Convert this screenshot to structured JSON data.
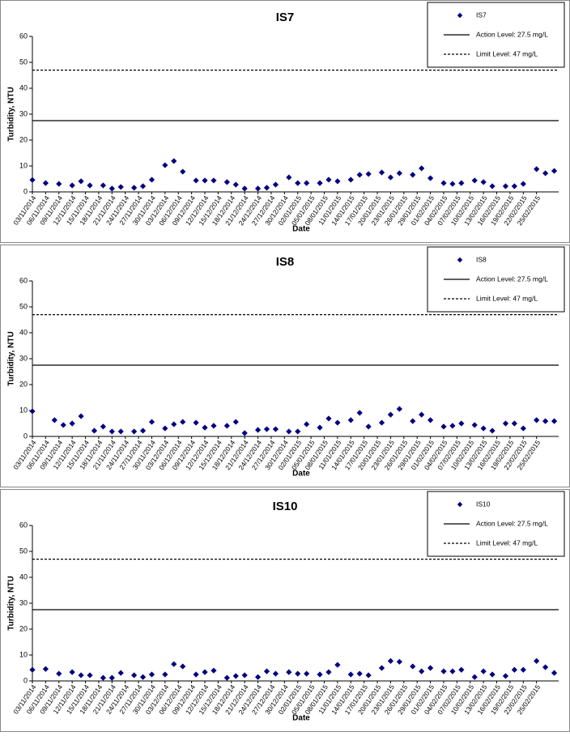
{
  "chart_data": [
    {
      "type": "scatter",
      "title": "IS7",
      "x_label": "Date",
      "y_label": "Turbidity, NTU",
      "legend": "upper right",
      "series": [
        {
          "name": "IS7",
          "color": "#000080",
          "x": [
            "03/11/2014",
            "06/11/2014",
            "09/11/2014",
            "12/11/2014",
            "14/11/2014",
            "16/11/2014",
            "19/11/2014",
            "21/11/2014",
            "23/11/2014",
            "26/11/2014",
            "28/11/2014",
            "30/11/2014",
            "03/12/2014",
            "05/12/2014",
            "07/12/2014",
            "10/12/2014",
            "12/12/2014",
            "14/12/2014",
            "17/12/2014",
            "19/12/2014",
            "21/12/2014",
            "24/12/2014",
            "26/12/2014",
            "28/12/2014",
            "31/12/2014",
            "02/01/2015",
            "04/01/2015",
            "07/01/2015",
            "09/01/2015",
            "11/01/2015",
            "14/01/2015",
            "16/01/2015",
            "18/01/2015",
            "21/01/2015",
            "23/01/2015",
            "25/01/2015",
            "28/01/2015",
            "30/01/2015",
            "01/02/2015",
            "04/02/2015",
            "06/02/2015",
            "08/02/2015",
            "11/02/2015",
            "13/02/2015",
            "15/02/2015",
            "18/02/2015",
            "20/02/2015",
            "22/02/2015",
            "25/02/2015",
            "27/02/2015",
            "01/03/2015"
          ],
          "values": [
            4.6,
            3.4,
            3.1,
            2.5,
            4.1,
            2.5,
            2.5,
            1.3,
            1.9,
            1.6,
            2.2,
            4.7,
            10.3,
            11.9,
            7.8,
            4.4,
            4.4,
            4.4,
            3.8,
            2.8,
            1.3,
            1.3,
            1.6,
            2.8,
            5.6,
            3.4,
            3.4,
            3.4,
            4.7,
            4.1,
            4.7,
            6.6,
            6.9,
            7.5,
            5.6,
            7.2,
            6.6,
            9.1,
            5.3,
            3.4,
            3.1,
            3.4,
            4.4,
            3.8,
            2.2,
            2.2,
            2.2,
            3.1,
            8.8,
            7.2,
            8.1
          ]
        }
      ],
      "reference_lines": [
        {
          "name": "Action Level: 27.5 mg/L",
          "value": 27.5,
          "style": "solid"
        },
        {
          "name": "Limit Level: 47 mg/L",
          "value": 47,
          "style": "dashed"
        }
      ],
      "xlim": [
        "03/11/2014",
        "02/03/2015"
      ],
      "xticks": [
        "03/11/2014",
        "06/11/2014",
        "09/11/2014",
        "12/11/2014",
        "15/11/2014",
        "18/11/2014",
        "21/11/2014",
        "24/11/2014",
        "27/11/2014",
        "30/11/2014",
        "03/12/2014",
        "06/12/2014",
        "09/12/2014",
        "12/12/2014",
        "15/12/2014",
        "18/12/2014",
        "21/12/2014",
        "24/12/2014",
        "27/12/2014",
        "30/12/2014",
        "02/01/2015",
        "05/01/2015",
        "08/01/2015",
        "11/01/2015",
        "14/01/2015",
        "17/01/2015",
        "20/01/2015",
        "23/01/2015",
        "26/01/2015",
        "29/01/2015",
        "01/02/2015",
        "04/02/2015",
        "07/02/2015",
        "10/02/2015",
        "13/02/2015",
        "16/02/2015",
        "19/02/2015",
        "22/02/2015",
        "25/02/2015"
      ],
      "ylim": [
        0,
        60
      ],
      "yticks": [
        0,
        10,
        20,
        30,
        40,
        50,
        60
      ]
    },
    {
      "type": "scatter",
      "title": "IS8",
      "x_label": "Date",
      "y_label": "Turbidity, NTU",
      "legend": "upper right",
      "series": [
        {
          "name": "IS8",
          "color": "#000080",
          "x": [
            "03/11/2014",
            "08/11/2014",
            "10/11/2014",
            "12/11/2014",
            "14/11/2014",
            "17/11/2014",
            "19/11/2014",
            "21/11/2014",
            "23/11/2014",
            "26/11/2014",
            "28/11/2014",
            "30/11/2014",
            "03/12/2014",
            "05/12/2014",
            "07/12/2014",
            "10/12/2014",
            "12/12/2014",
            "14/12/2014",
            "17/12/2014",
            "19/12/2014",
            "21/12/2014",
            "24/12/2014",
            "26/12/2014",
            "28/12/2014",
            "31/12/2014",
            "02/01/2015",
            "04/01/2015",
            "07/01/2015",
            "09/01/2015",
            "11/01/2015",
            "14/01/2015",
            "16/01/2015",
            "18/01/2015",
            "21/01/2015",
            "23/01/2015",
            "25/01/2015",
            "28/01/2015",
            "30/01/2015",
            "01/02/2015",
            "04/02/2015",
            "06/02/2015",
            "08/02/2015",
            "11/02/2015",
            "13/02/2015",
            "15/02/2015",
            "18/02/2015",
            "20/02/2015",
            "22/02/2015",
            "25/02/2015",
            "27/02/2015",
            "01/03/2015"
          ],
          "values": [
            9.7,
            6.3,
            4.4,
            5.0,
            7.8,
            2.2,
            3.8,
            1.9,
            1.9,
            1.9,
            2.2,
            5.6,
            3.1,
            4.7,
            5.6,
            5.3,
            3.4,
            4.1,
            4.1,
            5.6,
            1.3,
            2.5,
            2.8,
            2.8,
            1.9,
            1.9,
            4.7,
            3.4,
            6.9,
            5.3,
            6.3,
            9.1,
            3.8,
            5.3,
            8.4,
            10.6,
            5.9,
            8.4,
            6.3,
            3.8,
            4.1,
            5.0,
            4.4,
            3.1,
            2.2,
            5.0,
            5.0,
            3.1,
            6.3,
            5.9,
            5.9
          ]
        }
      ],
      "reference_lines": [
        {
          "name": "Action Level: 27.5 mg/L",
          "value": 27.5,
          "style": "solid"
        },
        {
          "name": "Limit Level: 47 mg/L",
          "value": 47,
          "style": "dashed"
        }
      ],
      "xlim": [
        "03/11/2014",
        "02/03/2015"
      ],
      "xticks": [
        "03/11/2014",
        "06/11/2014",
        "09/11/2014",
        "12/11/2014",
        "15/11/2014",
        "18/11/2014",
        "21/11/2014",
        "24/11/2014",
        "27/11/2014",
        "30/11/2014",
        "03/12/2014",
        "06/12/2014",
        "09/12/2014",
        "12/12/2014",
        "15/12/2014",
        "18/12/2014",
        "21/12/2014",
        "24/12/2014",
        "27/12/2014",
        "30/12/2014",
        "02/01/2015",
        "05/01/2015",
        "08/01/2015",
        "11/01/2015",
        "14/01/2015",
        "17/01/2015",
        "20/01/2015",
        "23/01/2015",
        "26/01/2015",
        "29/01/2015",
        "01/02/2015",
        "04/02/2015",
        "07/02/2015",
        "10/02/2015",
        "13/02/2015",
        "16/02/2015",
        "19/02/2015",
        "22/02/2015",
        "25/02/2015"
      ],
      "ylim": [
        0,
        60
      ],
      "yticks": [
        0,
        10,
        20,
        30,
        40,
        50,
        60
      ]
    },
    {
      "type": "scatter",
      "title": "IS10",
      "x_label": "Date",
      "y_label": "Turbidity, NTU",
      "legend": "upper right",
      "series": [
        {
          "name": "IS10",
          "color": "#000080",
          "x": [
            "03/11/2014",
            "06/11/2014",
            "09/11/2014",
            "12/11/2014",
            "14/11/2014",
            "16/11/2014",
            "19/11/2014",
            "21/11/2014",
            "23/11/2014",
            "26/11/2014",
            "28/11/2014",
            "30/11/2014",
            "03/12/2014",
            "05/12/2014",
            "07/12/2014",
            "10/12/2014",
            "12/12/2014",
            "14/12/2014",
            "17/12/2014",
            "19/12/2014",
            "21/12/2014",
            "24/12/2014",
            "26/12/2014",
            "28/12/2014",
            "31/12/2014",
            "02/01/2015",
            "04/01/2015",
            "07/01/2015",
            "09/01/2015",
            "11/01/2015",
            "14/01/2015",
            "16/01/2015",
            "18/01/2015",
            "21/01/2015",
            "23/01/2015",
            "25/01/2015",
            "28/01/2015",
            "30/01/2015",
            "01/02/2015",
            "04/02/2015",
            "06/02/2015",
            "08/02/2015",
            "11/02/2015",
            "13/02/2015",
            "15/02/2015",
            "18/02/2015",
            "20/02/2015",
            "22/02/2015",
            "25/02/2015",
            "27/02/2015",
            "01/03/2015"
          ],
          "values": [
            4.3,
            4.6,
            2.8,
            3.4,
            2.2,
            2.2,
            1.2,
            1.2,
            3.1,
            2.2,
            1.5,
            2.5,
            2.5,
            6.5,
            5.6,
            2.5,
            3.4,
            4.0,
            1.2,
            1.9,
            2.2,
            1.5,
            3.7,
            2.8,
            3.4,
            2.8,
            2.8,
            2.5,
            3.4,
            6.2,
            2.5,
            2.8,
            2.2,
            5.0,
            7.7,
            7.4,
            5.6,
            3.7,
            5.0,
            3.7,
            3.7,
            4.3,
            1.5,
            3.7,
            2.5,
            1.9,
            4.3,
            4.3,
            7.7,
            5.3,
            3.1
          ]
        }
      ],
      "reference_lines": [
        {
          "name": "Action Level: 27.5 mg/L",
          "value": 27.5,
          "style": "solid"
        },
        {
          "name": "Limit Level: 47 mg/L",
          "value": 47,
          "style": "dashed"
        }
      ],
      "xlim": [
        "03/11/2014",
        "02/03/2015"
      ],
      "xticks": [
        "03/11/2014",
        "06/11/2014",
        "09/11/2014",
        "12/11/2014",
        "15/11/2014",
        "18/11/2014",
        "21/11/2014",
        "24/11/2014",
        "27/11/2014",
        "30/11/2014",
        "03/12/2014",
        "06/12/2014",
        "09/12/2014",
        "12/12/2014",
        "15/12/2014",
        "18/12/2014",
        "21/12/2014",
        "24/12/2014",
        "27/12/2014",
        "30/12/2014",
        "02/01/2015",
        "05/01/2015",
        "08/01/2015",
        "11/01/2015",
        "14/01/2015",
        "17/01/2015",
        "20/01/2015",
        "23/01/2015",
        "26/01/2015",
        "29/01/2015",
        "01/02/2015",
        "04/02/2015",
        "07/02/2015",
        "10/02/2015",
        "13/02/2015",
        "16/02/2015",
        "19/02/2015",
        "22/02/2015",
        "25/02/2015"
      ],
      "ylim": [
        0,
        60
      ],
      "yticks": [
        0,
        10,
        20,
        30,
        40,
        50,
        60
      ]
    }
  ]
}
